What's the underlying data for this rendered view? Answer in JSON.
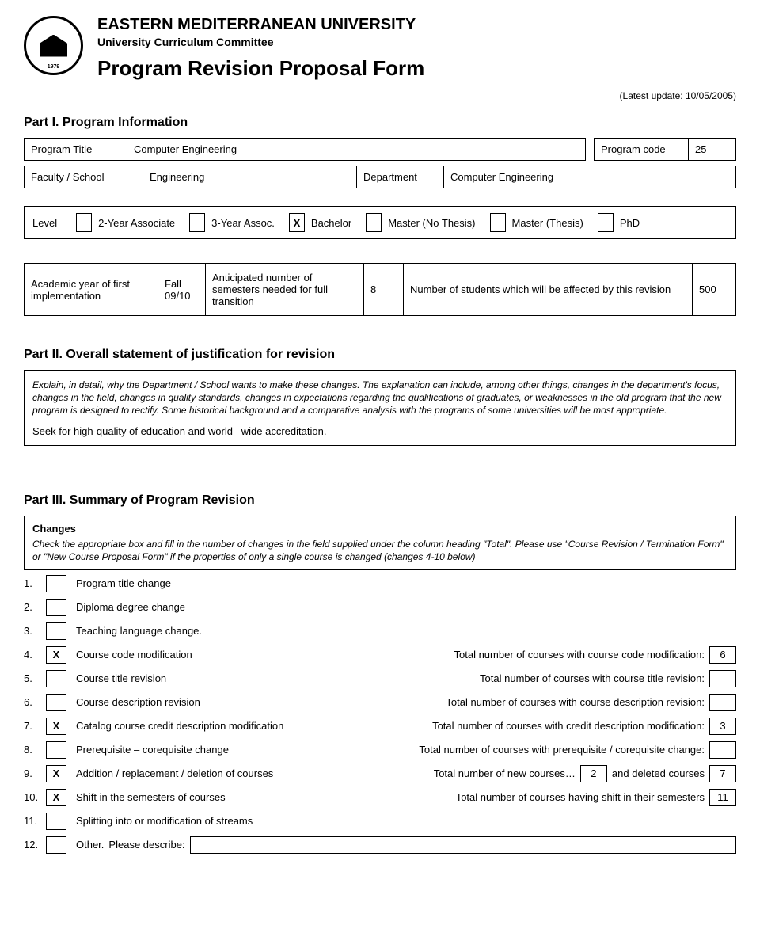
{
  "header": {
    "uni": "EASTERN MEDITERRANEAN UNIVERSITY",
    "committee": "University Curriculum Committee",
    "title": "Program Revision Proposal Form",
    "update": "(Latest update: 10/05/2005)",
    "logoYear": "1979"
  },
  "part1": {
    "heading": "Part I. Program Information",
    "progTitleLabel": "Program Title",
    "progTitle": "Computer Engineering",
    "progCodeLabel": "Program code",
    "progCode": "25",
    "facultyLabel": "Faculty / School",
    "faculty": "Engineering",
    "deptLabel": "Department",
    "dept": "Computer Engineering",
    "levelLabel": "Level",
    "levels": [
      {
        "mark": "",
        "text": "2-Year Associate"
      },
      {
        "mark": "",
        "text": "3-Year Assoc."
      },
      {
        "mark": "X",
        "text": "Bachelor"
      },
      {
        "mark": "",
        "text": "Master (No Thesis)"
      },
      {
        "mark": "",
        "text": "Master (Thesis)"
      },
      {
        "mark": "",
        "text": "PhD"
      }
    ],
    "academic": {
      "l1": "Academic year of first implementation",
      "v1": "Fall 09/10",
      "l2": "Anticipated number of semesters needed for full transition",
      "v2": "8",
      "l3": "Number of students which will be affected by this revision",
      "v3": "500"
    }
  },
  "part2": {
    "heading": "Part II. Overall statement of justification for revision",
    "instr": "Explain, in detail, why the Department / School wants to make these changes. The explanation can include, among other things, changes in the department's focus, changes in the field, changes in quality standards, changes in expectations regarding the qualifications of graduates, or weaknesses in the old program that the new program is designed to rectify. Some historical background and a comparative analysis with the programs of some universities will be most appropriate.",
    "answer": "Seek for high-quality of education and world –wide accreditation."
  },
  "part3": {
    "heading": "Part III. Summary of Program Revision",
    "changesTitle": "Changes",
    "instr": "Check the appropriate box and fill in the number of changes in the field supplied under the column heading \"Total\". Please use \"Course Revision / Termination Form\" or \"New Course Proposal Form\" if the properties of only a single course is changed (changes 4-10 below)",
    "items": [
      {
        "n": "1.",
        "mark": "",
        "label": "Program title change"
      },
      {
        "n": "2.",
        "mark": "",
        "label": "Diploma degree change"
      },
      {
        "n": "3.",
        "mark": "",
        "label": "Teaching language change."
      },
      {
        "n": "4.",
        "mark": "X",
        "label": "Course code modification",
        "right": "Total number of courses with course code modification:",
        "count": "6"
      },
      {
        "n": "5.",
        "mark": "",
        "label": "Course title revision",
        "right": "Total number of courses with course title revision:",
        "count": ""
      },
      {
        "n": "6.",
        "mark": "",
        "label": "Course description revision",
        "right": "Total number of courses with course description revision:",
        "count": ""
      },
      {
        "n": "7.",
        "mark": "X",
        "label": "Catalog course credit description modification",
        "right": "Total number of courses with credit description modification:",
        "count": "3"
      },
      {
        "n": "8.",
        "mark": "",
        "label": "Prerequisite – corequisite change",
        "right": "Total number of courses with prerequisite / corequisite change:",
        "count": ""
      },
      {
        "n": "9.",
        "mark": "X",
        "label": "Addition / replacement / deletion of courses",
        "rightA": "Total number of new courses…",
        "countA": "2",
        "rightB": "and deleted courses",
        "countB": "7"
      },
      {
        "n": "10.",
        "mark": "X",
        "label": "Shift in the semesters of courses",
        "right": "Total number of courses having shift in their semesters",
        "count": "11"
      },
      {
        "n": "11.",
        "mark": "",
        "label": "Splitting into or modification of streams"
      },
      {
        "n": "12.",
        "mark": "",
        "label": "Other.",
        "desc": "Please describe:"
      }
    ]
  }
}
